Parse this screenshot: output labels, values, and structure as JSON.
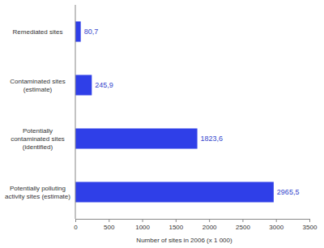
{
  "chart_data": {
    "type": "bar",
    "orientation": "horizontal",
    "categories": [
      "Remediated sites",
      "Contaminated sites (estimate)",
      "Potentially contaminated sites (identified)",
      "Potentially polluting activity sites (estimate)"
    ],
    "values": [
      80.7,
      245.9,
      1823.6,
      2965.5
    ],
    "value_labels": [
      "80,7",
      "245,9",
      "1823,6",
      "2965,5"
    ],
    "data_labels": true,
    "color": "#2f3fe8",
    "xlabel": "Number of sites in 2006 (x 1 000)",
    "xlim": [
      0,
      3500
    ],
    "xticks": [
      0,
      500,
      1000,
      1500,
      2000,
      2500,
      3000,
      3500
    ],
    "grid": false
  }
}
